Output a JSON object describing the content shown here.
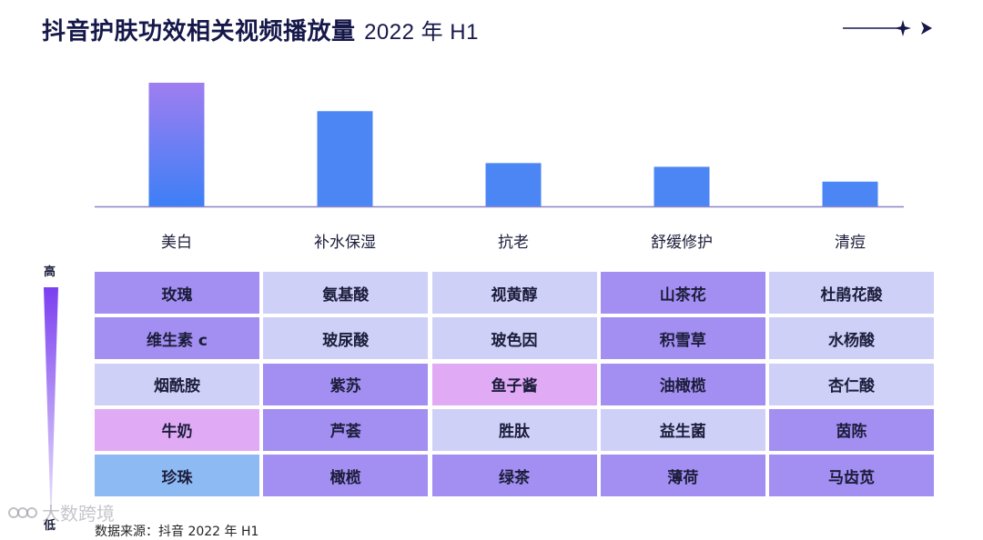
{
  "title": {
    "main": "抖音护肤功效相关视频播放量",
    "year": "2022 年 H1"
  },
  "chart_data": {
    "type": "bar",
    "title": "抖音护肤功效相关视频播放量 2022 年 H1",
    "categories": [
      "美白",
      "补水保湿",
      "抗老",
      "舒缓修护",
      "清痘"
    ],
    "values": [
      100,
      77,
      35,
      32,
      20
    ],
    "bar_color_top": "#9f7ef0",
    "bar_color_bottom": "#3d7ff6",
    "bar_color": "#4b86f4",
    "axis_color": "#8a86c9"
  },
  "scale": {
    "high": "高",
    "low": "低"
  },
  "ingredient_grid": {
    "columns": [
      "美白",
      "补水保湿",
      "抗老",
      "舒缓修护",
      "清痘"
    ],
    "rows": [
      [
        {
          "text": "玫瑰",
          "color": "#a38ef1"
        },
        {
          "text": "氨基酸",
          "color": "#cfd0f7"
        },
        {
          "text": "视黄醇",
          "color": "#cfd0f7"
        },
        {
          "text": "山茶花",
          "color": "#a38ef1"
        },
        {
          "text": "杜鹃花酸",
          "color": "#cfd0f7"
        }
      ],
      [
        {
          "text": "维生素 c",
          "color": "#a38ef1"
        },
        {
          "text": "玻尿酸",
          "color": "#cfd0f7"
        },
        {
          "text": "玻色因",
          "color": "#cfd0f7"
        },
        {
          "text": "积雪草",
          "color": "#a38ef1"
        },
        {
          "text": "水杨酸",
          "color": "#cfd0f7"
        }
      ],
      [
        {
          "text": "烟酰胺",
          "color": "#cfd0f7"
        },
        {
          "text": "紫苏",
          "color": "#a38ef1"
        },
        {
          "text": "鱼子酱",
          "color": "#e0aaf5"
        },
        {
          "text": "油橄榄",
          "color": "#a38ef1"
        },
        {
          "text": "杏仁酸",
          "color": "#cfd0f7"
        }
      ],
      [
        {
          "text": "牛奶",
          "color": "#e0aaf5"
        },
        {
          "text": "芦荟",
          "color": "#a38ef1"
        },
        {
          "text": "胜肽",
          "color": "#cfd0f7"
        },
        {
          "text": "益生菌",
          "color": "#cfd0f7"
        },
        {
          "text": "茵陈",
          "color": "#a38ef1"
        }
      ],
      [
        {
          "text": "珍珠",
          "color": "#8dbaf2"
        },
        {
          "text": "橄榄",
          "color": "#a38ef1"
        },
        {
          "text": "绿茶",
          "color": "#a38ef1"
        },
        {
          "text": "薄荷",
          "color": "#a38ef1"
        },
        {
          "text": "马齿苋",
          "color": "#a38ef1"
        }
      ]
    ]
  },
  "watermark": "大数跨境",
  "footnote": "数据来源：抖音 2022 年 H1"
}
